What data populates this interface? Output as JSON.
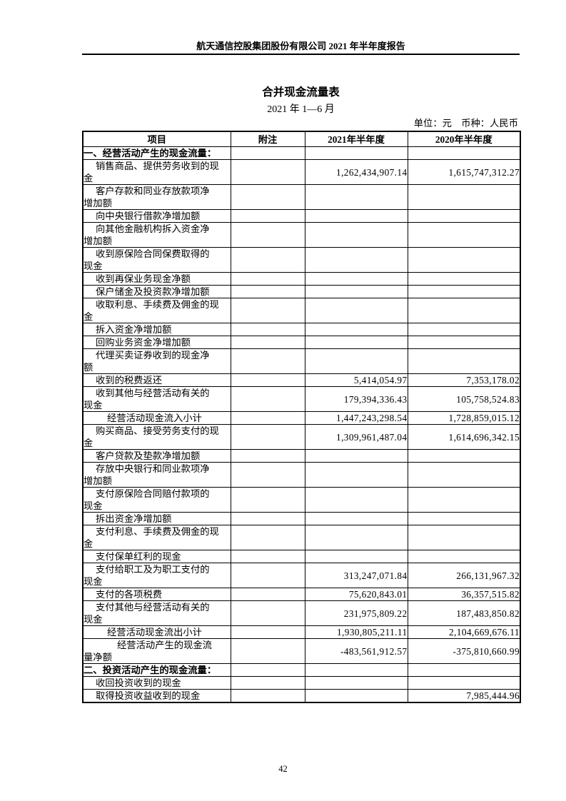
{
  "page": {
    "header_title": "航天通信控股集团股份有限公司 2021 年半年度报告",
    "title": "合并现金流量表",
    "subtitle": "2021 年 1—6 月",
    "unit_line": "单位：元　币种：人民币",
    "page_number": "42"
  },
  "table": {
    "headers": [
      "项目",
      "附注",
      "2021年半年度",
      "2020年半年度"
    ],
    "rows": [
      {
        "level": 0,
        "item": "一、经营活动产生的现金流量：",
        "note": "",
        "v2021": "",
        "v2020": ""
      },
      {
        "level": 1,
        "item": "销售商品、提供劳务收到的现\n金",
        "note": "",
        "v2021": "1,262,434,907.14",
        "v2020": "1,615,747,312.27"
      },
      {
        "level": 1,
        "item": "客户存款和同业存放款项净\n增加额",
        "note": "",
        "v2021": "",
        "v2020": ""
      },
      {
        "level": 1,
        "item": "向中央银行借款净增加额",
        "note": "",
        "v2021": "",
        "v2020": ""
      },
      {
        "level": 1,
        "item": "向其他金融机构拆入资金净\n增加额",
        "note": "",
        "v2021": "",
        "v2020": ""
      },
      {
        "level": 1,
        "item": "收到原保险合同保费取得的\n现金",
        "note": "",
        "v2021": "",
        "v2020": ""
      },
      {
        "level": 1,
        "item": "收到再保业务现金净额",
        "note": "",
        "v2021": "",
        "v2020": ""
      },
      {
        "level": 1,
        "item": "保户储金及投资款净增加额",
        "note": "",
        "v2021": "",
        "v2020": ""
      },
      {
        "level": 1,
        "item": "收取利息、手续费及佣金的现\n金",
        "note": "",
        "v2021": "",
        "v2020": ""
      },
      {
        "level": 1,
        "item": "拆入资金净增加额",
        "note": "",
        "v2021": "",
        "v2020": ""
      },
      {
        "level": 1,
        "item": "回购业务资金净增加额",
        "note": "",
        "v2021": "",
        "v2020": ""
      },
      {
        "level": 1,
        "item": "代理买卖证券收到的现金净\n额",
        "note": "",
        "v2021": "",
        "v2020": ""
      },
      {
        "level": 1,
        "item": "收到的税费返还",
        "note": "",
        "v2021": "5,414,054.97",
        "v2020": "7,353,178.02"
      },
      {
        "level": 1,
        "item": "收到其他与经营活动有关的\n现金",
        "note": "",
        "v2021": "179,394,336.43",
        "v2020": "105,758,524.83"
      },
      {
        "level": 2,
        "item": "经营活动现金流入小计",
        "note": "",
        "v2021": "1,447,243,298.54",
        "v2020": "1,728,859,015.12"
      },
      {
        "level": 1,
        "item": "购买商品、接受劳务支付的现\n金",
        "note": "",
        "v2021": "1,309,961,487.04",
        "v2020": "1,614,696,342.15"
      },
      {
        "level": 1,
        "item": "客户贷款及垫款净增加额",
        "note": "",
        "v2021": "",
        "v2020": ""
      },
      {
        "level": 1,
        "item": "存放中央银行和同业款项净\n增加额",
        "note": "",
        "v2021": "",
        "v2020": ""
      },
      {
        "level": 1,
        "item": "支付原保险合同赔付款项的\n现金",
        "note": "",
        "v2021": "",
        "v2020": ""
      },
      {
        "level": 1,
        "item": "拆出资金净增加额",
        "note": "",
        "v2021": "",
        "v2020": ""
      },
      {
        "level": 1,
        "item": "支付利息、手续费及佣金的现\n金",
        "note": "",
        "v2021": "",
        "v2020": ""
      },
      {
        "level": 1,
        "item": "支付保单红利的现金",
        "note": "",
        "v2021": "",
        "v2020": ""
      },
      {
        "level": 1,
        "item": "支付给职工及为职工支付的\n现金",
        "note": "",
        "v2021": "313,247,071.84",
        "v2020": "266,131,967.32"
      },
      {
        "level": 1,
        "item": "支付的各项税费",
        "note": "",
        "v2021": "75,620,843.01",
        "v2020": "36,357,515.82"
      },
      {
        "level": 1,
        "item": "支付其他与经营活动有关的\n现金",
        "note": "",
        "v2021": "231,975,809.22",
        "v2020": "187,483,850.82"
      },
      {
        "level": 2,
        "item": "经营活动现金流出小计",
        "note": "",
        "v2021": "1,930,805,211.11",
        "v2020": "2,104,669,676.11"
      },
      {
        "level": 3,
        "item": "经营活动产生的现金流\n量净额",
        "note": "",
        "v2021": "-483,561,912.57",
        "v2020": "-375,810,660.99"
      },
      {
        "level": 0,
        "item": "二、投资活动产生的现金流量：",
        "note": "",
        "v2021": "",
        "v2020": ""
      },
      {
        "level": 1,
        "item": "收回投资收到的现金",
        "note": "",
        "v2021": "",
        "v2020": ""
      },
      {
        "level": 1,
        "item": "取得投资收益收到的现金",
        "note": "",
        "v2021": "",
        "v2020": "7,985,444.96"
      }
    ]
  }
}
